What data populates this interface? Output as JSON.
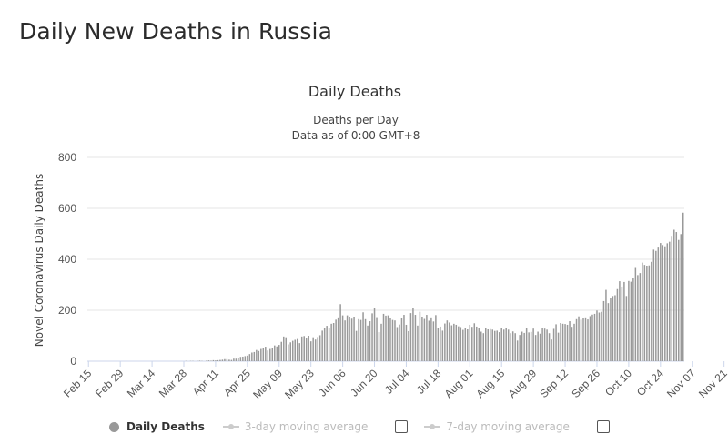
{
  "page": {
    "title": "Daily New Deaths in Russia"
  },
  "legend": {
    "items": [
      {
        "label": "Daily Deaths",
        "active": true,
        "color": "#999999"
      },
      {
        "label": "3-day moving average",
        "active": false,
        "color": "#cccccc"
      },
      {
        "label": "7-day moving average",
        "active": false,
        "color": "#cccccc"
      }
    ]
  },
  "chart_data": {
    "type": "bar",
    "title": "Daily Deaths",
    "subtitle": [
      "Deaths per Day",
      "Data as of 0:00 GMT+8"
    ],
    "ylabel": "Novel Coronavirus Daily Deaths",
    "xlabel": "",
    "ylim": [
      0,
      800
    ],
    "yticks": [
      0,
      200,
      400,
      600,
      800
    ],
    "grid": true,
    "bar_color": "#999999",
    "legend_position": "bottom",
    "x_start": "Feb 15",
    "x_tick_labels": [
      "Feb 15",
      "Feb 29",
      "Mar 14",
      "Mar 28",
      "Apr 11",
      "Apr 25",
      "May 09",
      "May 23",
      "Jun 06",
      "Jun 20",
      "Jul 04",
      "Jul 18",
      "Aug 01",
      "Aug 15",
      "Aug 29",
      "Sep 12",
      "Sep 26",
      "Oct 10",
      "Oct 24",
      "Nov 07",
      "Nov 21"
    ],
    "series": [
      {
        "values": [
          0,
          0,
          0,
          0,
          0,
          0,
          0,
          0,
          0,
          0,
          0,
          0,
          0,
          0,
          0,
          0,
          0,
          0,
          0,
          0,
          0,
          0,
          0,
          0,
          0,
          0,
          0,
          0,
          0,
          0,
          0,
          0,
          0,
          0,
          0,
          0,
          0,
          0,
          0,
          0,
          0,
          0,
          0,
          1,
          0,
          1,
          1,
          0,
          1,
          2,
          1,
          0,
          2,
          3,
          2,
          4,
          3,
          4,
          5,
          6,
          8,
          8,
          6,
          5,
          10,
          10,
          13,
          17,
          18,
          20,
          22,
          28,
          34,
          36,
          44,
          40,
          48,
          53,
          57,
          42,
          48,
          51,
          62,
          58,
          64,
          76,
          97,
          94,
          66,
          74,
          80,
          84,
          87,
          71,
          97,
          99,
          92,
          100,
          78,
          94,
          85,
          95,
          102,
          120,
          131,
          139,
          130,
          147,
          150,
          163,
          172,
          224,
          180,
          160,
          180,
          175,
          167,
          175,
          119,
          165,
          162,
          192,
          165,
          140,
          157,
          188,
          210,
          173,
          114,
          147,
          186,
          179,
          180,
          169,
          162,
          160,
          134,
          144,
          171,
          182,
          143,
          118,
          189,
          209,
          182,
          140,
          194,
          175,
          166,
          182,
          159,
          172,
          156,
          181,
          132,
          136,
          120,
          148,
          160,
          152,
          141,
          147,
          143,
          137,
          134,
          123,
          132,
          125,
          143,
          135,
          149,
          136,
          130,
          116,
          110,
          130,
          125,
          126,
          124,
          119,
          120,
          114,
          131,
          124,
          129,
          124,
          110,
          117,
          110,
          81,
          103,
          116,
          111,
          129,
          113,
          115,
          128,
          103,
          116,
          108,
          132,
          128,
          124,
          110,
          85,
          127,
          145,
          112,
          150,
          147,
          146,
          143,
          157,
          135,
          147,
          165,
          176,
          163,
          168,
          172,
          164,
          177,
          183,
          186,
          199,
          191,
          194,
          236,
          280,
          228,
          250,
          256,
          259,
          283,
          314,
          293,
          311,
          256,
          315,
          312,
          326,
          366,
          338,
          346,
          387,
          378,
          375,
          376,
          390,
          438,
          433,
          446,
          464,
          456,
          451,
          463,
          469,
          492,
          516,
          507,
          476,
          499,
          583
        ]
      }
    ]
  }
}
